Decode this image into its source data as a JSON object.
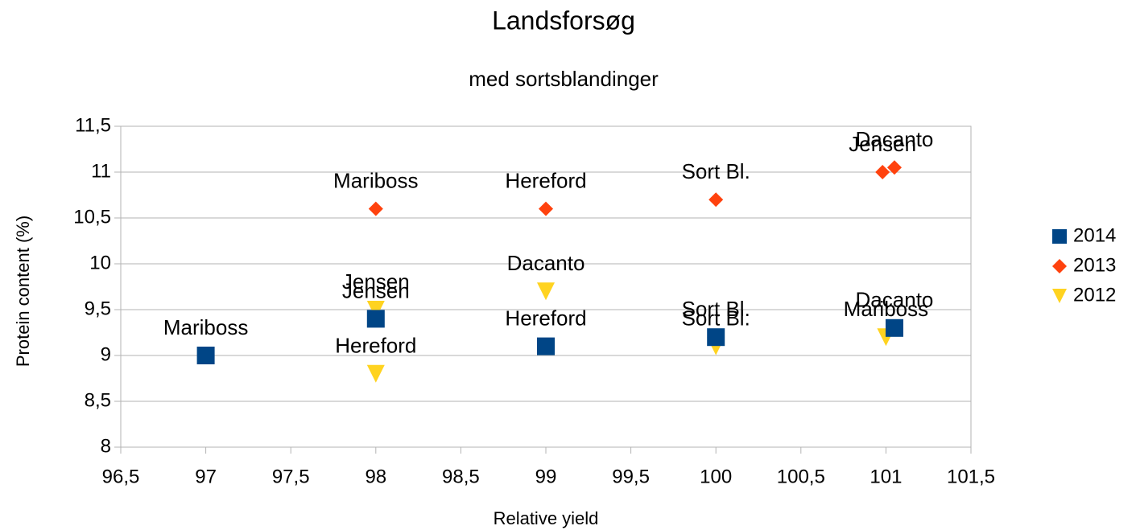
{
  "chart_data": {
    "type": "scatter",
    "title": "Landsforsøg",
    "subtitle": "med sortsblandinger",
    "x_label": "Relative yield",
    "y_label": "Protein content (%)",
    "xlim": [
      96.5,
      101.5
    ],
    "xticks": [
      {
        "value": 96.5,
        "label": "96,5"
      },
      97,
      {
        "value": 97.5,
        "label": "97,5"
      },
      98,
      {
        "value": 98.5,
        "label": "98,5"
      },
      99,
      {
        "value": 99.5,
        "label": "99,5"
      },
      100,
      {
        "value": 100.5,
        "label": "100,5"
      },
      101,
      {
        "value": 101.5,
        "label": "101,5"
      }
    ],
    "ylim": [
      8,
      11.5
    ],
    "yticks": [
      8,
      {
        "value": 8.5,
        "label": "8,5"
      },
      9,
      {
        "value": 9.5,
        "label": "9,5"
      },
      10,
      {
        "value": 10.5,
        "label": "10,5"
      },
      11,
      {
        "value": 11.5,
        "label": "11,5"
      }
    ],
    "grid": true,
    "legend": "right",
    "series": [
      {
        "name": "2014",
        "color": "#004586",
        "marker": "square",
        "x": [
          97,
          98,
          99,
          100,
          101.05
        ],
        "values": [
          9.0,
          9.4,
          9.1,
          9.2,
          9.3
        ],
        "labels": [
          "Mariboss",
          "Jensen",
          "Hereford",
          "Sort Bl.",
          "Dacanto"
        ]
      },
      {
        "name": "2013",
        "color": "#ff420e",
        "marker": "diamond",
        "x": [
          98,
          99,
          100,
          100.98,
          101.05
        ],
        "values": [
          10.6,
          10.6,
          10.7,
          11.0,
          11.05
        ],
        "labels": [
          "Mariboss",
          "Hereford",
          "Sort Bl.",
          "Jensen",
          "Dacanto"
        ]
      },
      {
        "name": "2012",
        "color": "#ffd320",
        "marker": "triangle-down",
        "x": [
          98,
          98,
          99,
          100,
          101
        ],
        "values": [
          9.5,
          8.8,
          9.7,
          9.1,
          9.2
        ],
        "labels": [
          "Jensen",
          "Hereford",
          "Dacanto",
          "Sort Bl.",
          "Mariboss"
        ]
      }
    ]
  }
}
